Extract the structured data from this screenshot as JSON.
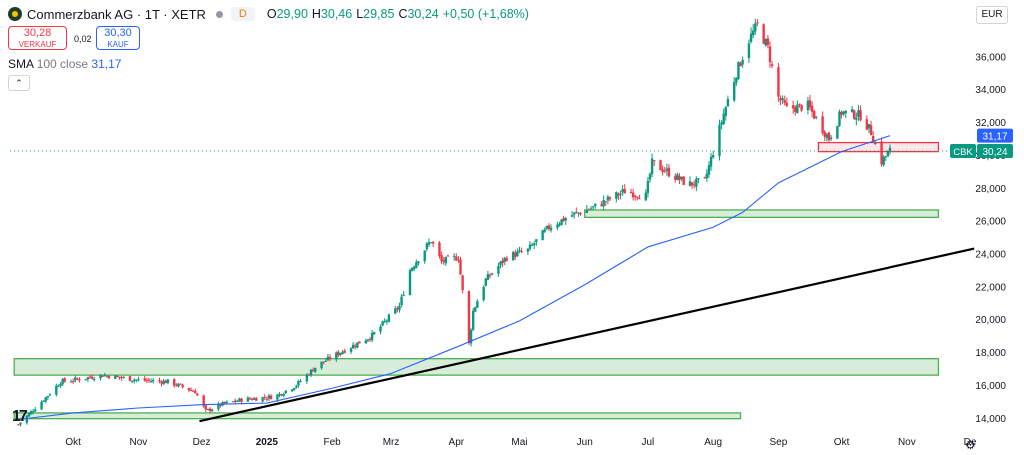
{
  "header": {
    "title": "Commerzbank AG · 1T · XETR",
    "d_badge": "D",
    "open_label": "O",
    "open_value": "29,90",
    "high_label": "H",
    "high_value": "30,46",
    "low_label": "L",
    "low_value": "29,85",
    "close_label": "C",
    "close_value": "30,24",
    "change": "+0,50 (+1,68%)",
    "currency": "EUR"
  },
  "trade": {
    "sell_value": "30,28",
    "sell_label": "VERKAUF",
    "spread": "0,02",
    "buy_value": "30,30",
    "buy_label": "KAUF"
  },
  "indicator": {
    "name": "SMA",
    "params": "100 close",
    "value": "31,17"
  },
  "colors": {
    "up": "#089981",
    "down": "#f23645",
    "sma": "#2962ff",
    "zone_green": "#4caf50",
    "zone_red": "#f23645"
  },
  "chart_data": {
    "type": "candlestick",
    "title": "",
    "xlabel": "",
    "ylabel": "",
    "ylim": [
      13.2,
      39.0
    ],
    "y_ticks": [
      14,
      16,
      18,
      20,
      22,
      24,
      26,
      28,
      30,
      32,
      34,
      36
    ],
    "y_tick_labels": [
      "14,000",
      "16,000",
      "18,000",
      "20,000",
      "22,000",
      "24,000",
      "26,000",
      "28,000",
      "30,000",
      "32,000",
      "34,000",
      "36,000"
    ],
    "x_ticks": [
      {
        "date": "2024-10-01",
        "label": "Okt",
        "bold": false
      },
      {
        "date": "2024-11-01",
        "label": "Nov",
        "bold": false
      },
      {
        "date": "2024-12-01",
        "label": "Dez",
        "bold": false
      },
      {
        "date": "2025-01-01",
        "label": "2025",
        "bold": true
      },
      {
        "date": "2025-02-01",
        "label": "Feb",
        "bold": false
      },
      {
        "date": "2025-03-01",
        "label": "Mrz",
        "bold": false
      },
      {
        "date": "2025-04-01",
        "label": "Apr",
        "bold": false
      },
      {
        "date": "2025-05-01",
        "label": "Mai",
        "bold": false
      },
      {
        "date": "2025-06-01",
        "label": "Jun",
        "bold": false
      },
      {
        "date": "2025-07-01",
        "label": "Jul",
        "bold": false
      },
      {
        "date": "2025-08-01",
        "label": "Aug",
        "bold": false
      },
      {
        "date": "2025-09-01",
        "label": "Sep",
        "bold": false
      },
      {
        "date": "2025-10-01",
        "label": "Okt",
        "bold": false
      },
      {
        "date": "2025-11-01",
        "label": "Nov",
        "bold": false
      },
      {
        "date": "2025-12-01",
        "label": "De",
        "bold": false
      }
    ],
    "close_path": [
      [
        "2024-09-05",
        13.6
      ],
      [
        "2024-09-20",
        15.5
      ],
      [
        "2024-09-25",
        16.2
      ],
      [
        "2024-10-01",
        16.3
      ],
      [
        "2024-10-15",
        16.6
      ],
      [
        "2024-11-01",
        16.3
      ],
      [
        "2024-11-15",
        16.2
      ],
      [
        "2024-11-28",
        15.6
      ],
      [
        "2024-12-03",
        14.4
      ],
      [
        "2024-12-10",
        14.8
      ],
      [
        "2024-12-20",
        15.1
      ],
      [
        "2025-01-05",
        15.3
      ],
      [
        "2025-01-15",
        16.0
      ],
      [
        "2025-01-25",
        17.2
      ],
      [
        "2025-02-05",
        18.0
      ],
      [
        "2025-02-20",
        19.0
      ],
      [
        "2025-03-05",
        20.8
      ],
      [
        "2025-03-10",
        23.0
      ],
      [
        "2025-03-20",
        24.8
      ],
      [
        "2025-03-25",
        23.5
      ],
      [
        "2025-04-02",
        23.8
      ],
      [
        "2025-04-07",
        18.5
      ],
      [
        "2025-04-09",
        20.5
      ],
      [
        "2025-04-15",
        22.4
      ],
      [
        "2025-04-25",
        23.8
      ],
      [
        "2025-05-05",
        24.2
      ],
      [
        "2025-05-15",
        25.6
      ],
      [
        "2025-05-25",
        26.3
      ],
      [
        "2025-06-05",
        26.8
      ],
      [
        "2025-06-20",
        27.8
      ],
      [
        "2025-06-30",
        27.5
      ],
      [
        "2025-07-03",
        29.5
      ],
      [
        "2025-07-10",
        29.0
      ],
      [
        "2025-07-20",
        28.2
      ],
      [
        "2025-07-28",
        28.4
      ],
      [
        "2025-08-01",
        30.2
      ],
      [
        "2025-08-06",
        32.5
      ],
      [
        "2025-08-12",
        35.0
      ],
      [
        "2025-08-18",
        37.0
      ],
      [
        "2025-08-22",
        37.9
      ],
      [
        "2025-08-27",
        36.5
      ],
      [
        "2025-09-01",
        33.5
      ],
      [
        "2025-09-05",
        32.8
      ],
      [
        "2025-09-15",
        33.0
      ],
      [
        "2025-09-25",
        31.0
      ],
      [
        "2025-10-01",
        32.6
      ],
      [
        "2025-10-10",
        32.4
      ],
      [
        "2025-10-15",
        31.4
      ],
      [
        "2025-10-20",
        29.6
      ],
      [
        "2025-10-24",
        30.24
      ]
    ],
    "sma_100": [
      [
        "2024-09-05",
        13.9
      ],
      [
        "2024-10-01",
        14.3
      ],
      [
        "2024-11-01",
        14.6
      ],
      [
        "2024-12-01",
        14.8
      ],
      [
        "2025-01-01",
        14.9
      ],
      [
        "2025-02-01",
        15.8
      ],
      [
        "2025-03-01",
        16.7
      ],
      [
        "2025-04-01",
        18.3
      ],
      [
        "2025-05-01",
        19.9
      ],
      [
        "2025-06-01",
        22.1
      ],
      [
        "2025-07-01",
        24.4
      ],
      [
        "2025-08-01",
        25.6
      ],
      [
        "2025-08-15",
        26.5
      ],
      [
        "2025-09-01",
        28.3
      ],
      [
        "2025-10-01",
        30.2
      ],
      [
        "2025-10-24",
        31.17
      ]
    ],
    "trendline": {
      "start": [
        "2024-11-30",
        13.8
      ],
      "end": [
        "2025-12-03",
        24.3
      ]
    },
    "zones": [
      {
        "type": "support",
        "start": "2024-09-03",
        "end": "2025-11-16",
        "low": 16.6,
        "high": 17.6
      },
      {
        "type": "support",
        "start": "2024-09-03",
        "end": "2025-08-14",
        "low": 13.95,
        "high": 14.3
      },
      {
        "type": "support",
        "start": "2025-06-01",
        "end": "2025-11-16",
        "low": 26.2,
        "high": 26.65
      },
      {
        "type": "resistance",
        "start": "2025-09-20",
        "end": "2025-11-16",
        "low": 30.2,
        "high": 30.75
      }
    ],
    "last_price_line": 30.24,
    "price_labels": [
      {
        "text": "31,17",
        "value": 31.17,
        "kind": "sma"
      },
      {
        "text": "30,24",
        "value": 30.24,
        "kind": "last",
        "ticker": "CBK"
      }
    ]
  }
}
